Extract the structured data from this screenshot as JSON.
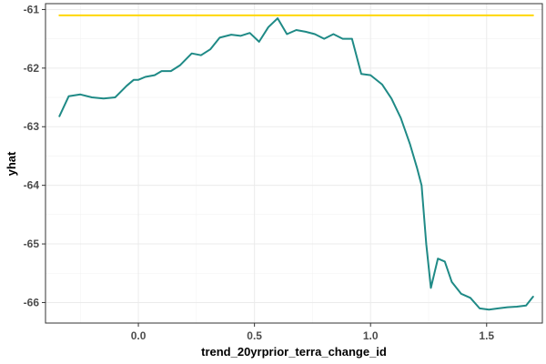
{
  "chart_data": {
    "type": "line",
    "title": "",
    "xlabel": "trend_20yrprior_terra_change_id",
    "ylabel": "yhat",
    "xlim": [
      -0.4,
      1.74
    ],
    "ylim": [
      -66.35,
      -60.9
    ],
    "x_ticks": [
      0.0,
      0.5,
      1.0,
      1.5
    ],
    "x_tick_labels": [
      "0.0",
      "0.5",
      "1.0",
      "1.5"
    ],
    "y_ticks": [
      -61,
      -62,
      -63,
      -64,
      -65,
      -66
    ],
    "y_tick_labels": [
      "-61",
      "-62",
      "-63",
      "-64",
      "-65",
      "-66"
    ],
    "grid": true,
    "legend": "none",
    "series": [
      {
        "color": "#1f8a86",
        "x": [
          -0.34,
          -0.3,
          -0.25,
          -0.2,
          -0.15,
          -0.1,
          -0.05,
          -0.02,
          0.0,
          0.03,
          0.07,
          0.1,
          0.14,
          0.18,
          0.23,
          0.27,
          0.31,
          0.35,
          0.4,
          0.44,
          0.48,
          0.52,
          0.56,
          0.6,
          0.64,
          0.68,
          0.72,
          0.76,
          0.8,
          0.84,
          0.88,
          0.92,
          0.96,
          1.0,
          1.05,
          1.09,
          1.13,
          1.17,
          1.2,
          1.22,
          1.24,
          1.26,
          1.29,
          1.32,
          1.35,
          1.39,
          1.43,
          1.47,
          1.51,
          1.55,
          1.59,
          1.63,
          1.67,
          1.7
        ],
        "y": [
          -62.82,
          -62.48,
          -62.45,
          -62.5,
          -62.52,
          -62.5,
          -62.3,
          -62.2,
          -62.2,
          -62.15,
          -62.12,
          -62.05,
          -62.05,
          -61.95,
          -61.75,
          -61.78,
          -61.68,
          -61.48,
          -61.43,
          -61.45,
          -61.4,
          -61.55,
          -61.3,
          -61.15,
          -61.42,
          -61.35,
          -61.38,
          -61.42,
          -61.5,
          -61.42,
          -61.5,
          -61.5,
          -62.1,
          -62.12,
          -62.28,
          -62.52,
          -62.85,
          -63.3,
          -63.7,
          -64.0,
          -65.0,
          -65.75,
          -65.25,
          -65.3,
          -65.65,
          -65.85,
          -65.92,
          -66.1,
          -66.12,
          -66.1,
          -66.08,
          -66.07,
          -66.05,
          -65.9
        ]
      },
      {
        "color": "#ffd700",
        "x": [
          -0.34,
          1.7
        ],
        "y": [
          -61.1,
          -61.1
        ]
      }
    ]
  }
}
